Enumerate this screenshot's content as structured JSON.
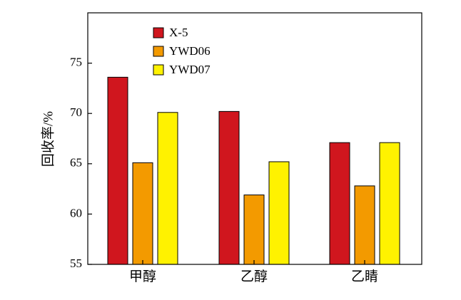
{
  "chart_data": {
    "type": "bar",
    "title": "",
    "xlabel": "",
    "ylabel": "回收率/%",
    "ylim": [
      55,
      80
    ],
    "yticks": [
      55,
      60,
      65,
      70,
      75
    ],
    "categories": [
      "甲醇",
      "乙醇",
      "乙睛"
    ],
    "series": [
      {
        "name": "X-5",
        "color": "#d0161e",
        "values": [
          73.6,
          70.2,
          67.1
        ]
      },
      {
        "name": "YWD06",
        "color": "#f39a00",
        "values": [
          65.1,
          61.9,
          62.8
        ]
      },
      {
        "name": "YWD07",
        "color": "#fff200",
        "values": [
          70.1,
          65.2,
          67.1
        ]
      }
    ],
    "legend_position": "top-left",
    "grid": false
  }
}
